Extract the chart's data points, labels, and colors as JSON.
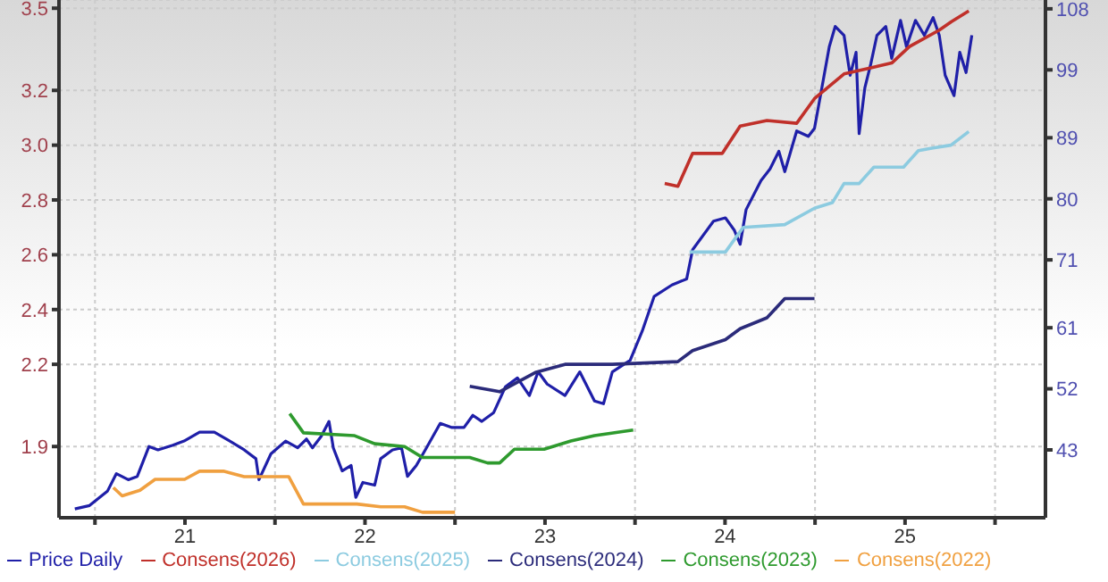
{
  "chart_data": {
    "type": "line",
    "xlim": [
      20.3,
      25.78
    ],
    "xticks": [
      {
        "value": 20.5,
        "label": null
      },
      21,
      {
        "value": 21.5,
        "label": null
      },
      22,
      {
        "value": 22.5,
        "label": null
      },
      23,
      {
        "value": 23.5,
        "label": null
      },
      24,
      {
        "value": 24.5,
        "label": null
      },
      25,
      {
        "value": 25.5,
        "label": null
      }
    ],
    "ylim": [
      1.64,
      3.53
    ],
    "yticks": [
      1.9,
      2.2,
      2.4,
      2.6,
      2.8,
      {
        "value": 3.0,
        "label": "3.0"
      },
      3.2,
      3.5
    ],
    "y2lim": [
      33,
      109.3
    ],
    "y2ticks": [
      43,
      52,
      61,
      71,
      80,
      89,
      99,
      108
    ],
    "grid": true,
    "legend": "bottom",
    "marker": "none",
    "line_style": "solid",
    "series": [
      {
        "name": "Price Daily",
        "color": "#1f1fa8",
        "axis": "y2",
        "x": [
          20.388,
          20.47,
          20.569,
          20.619,
          20.685,
          20.735,
          20.8,
          20.85,
          20.933,
          20.995,
          21.081,
          21.163,
          21.23,
          21.329,
          21.394,
          21.411,
          21.477,
          21.559,
          21.626,
          21.675,
          21.708,
          21.757,
          21.8,
          21.824,
          21.873,
          21.923,
          21.949,
          21.988,
          22.054,
          22.087,
          22.153,
          22.203,
          22.236,
          22.285,
          22.335,
          22.418,
          22.483,
          22.55,
          22.599,
          22.649,
          22.715,
          22.78,
          22.847,
          22.913,
          22.962,
          23.012,
          23.111,
          23.193,
          23.275,
          23.325,
          23.374,
          23.473,
          23.54,
          23.606,
          23.705,
          23.787,
          23.82,
          23.936,
          24.002,
          24.051,
          24.084,
          24.117,
          24.2,
          24.25,
          24.299,
          24.332,
          24.398,
          24.463,
          24.497,
          24.53,
          24.579,
          24.612,
          24.661,
          24.695,
          24.728,
          24.745,
          24.777,
          24.81,
          24.844,
          24.893,
          24.926,
          24.975,
          25.008,
          25.058,
          25.107,
          25.156,
          25.19,
          25.223,
          25.272,
          25.304,
          25.339,
          25.371
        ],
        "values": [
          34.3,
          34.8,
          36.9,
          39.5,
          38.6,
          39.1,
          43.5,
          43.0,
          43.7,
          44.3,
          45.6,
          45.6,
          44.6,
          43.0,
          41.7,
          38.6,
          42.4,
          44.3,
          43.3,
          44.6,
          43.3,
          45.0,
          47.2,
          43.3,
          39.9,
          40.7,
          36.0,
          38.2,
          37.8,
          41.7,
          43.0,
          43.3,
          39.1,
          40.7,
          43.0,
          46.9,
          46.3,
          46.3,
          48.1,
          47.2,
          48.5,
          52.3,
          53.6,
          51.0,
          54.5,
          52.7,
          51.0,
          54.5,
          50.2,
          49.8,
          54.5,
          56.2,
          60.5,
          65.6,
          67.3,
          68.2,
          72.5,
          76.7,
          77.2,
          75.4,
          73.3,
          78.4,
          82.7,
          84.4,
          87.0,
          84.0,
          90.0,
          89.2,
          90.4,
          95.2,
          102.4,
          105.4,
          104.1,
          98.2,
          101.6,
          89.6,
          96.4,
          99.9,
          104.1,
          105.4,
          100.7,
          106.3,
          102.4,
          106.3,
          104.1,
          106.7,
          104.1,
          98.2,
          95.2,
          101.6,
          98.6,
          104.1
        ]
      },
      {
        "name": "Consens(2026)",
        "color": "#c0302a",
        "x": [
          23.665,
          23.738,
          23.82,
          23.985,
          24.084,
          24.233,
          24.398,
          24.497,
          24.661,
          24.794,
          24.926,
          25.025,
          25.19,
          25.256,
          25.354
        ],
        "values": [
          2.86,
          2.85,
          2.97,
          2.97,
          3.07,
          3.09,
          3.08,
          3.17,
          3.26,
          3.28,
          3.3,
          3.36,
          3.42,
          3.45,
          3.49
        ]
      },
      {
        "name": "Consens(2025)",
        "color": "#8ccbe0",
        "x": [
          23.803,
          24.002,
          24.101,
          24.332,
          24.497,
          24.596,
          24.661,
          24.745,
          24.827,
          24.992,
          25.074,
          25.156,
          25.255,
          25.354
        ],
        "values": [
          2.61,
          2.61,
          2.7,
          2.71,
          2.77,
          2.79,
          2.86,
          2.86,
          2.92,
          2.92,
          2.98,
          2.99,
          3.0,
          3.05
        ]
      },
      {
        "name": "Consens(2024)",
        "color": "#2b2b7a",
        "x": [
          22.582,
          22.748,
          22.946,
          23.111,
          23.374,
          23.738,
          23.82,
          24.002,
          24.084,
          24.233,
          24.332,
          24.497
        ],
        "values": [
          2.12,
          2.1,
          2.17,
          2.2,
          2.2,
          2.21,
          2.25,
          2.29,
          2.33,
          2.37,
          2.44,
          2.44
        ]
      },
      {
        "name": "Consens(2023)",
        "color": "#2e9a2e",
        "x": [
          21.582,
          21.658,
          21.939,
          22.054,
          22.22,
          22.319,
          22.582,
          22.681,
          22.748,
          22.83,
          22.995,
          23.144,
          23.275,
          23.49
        ],
        "values": [
          2.02,
          1.95,
          1.94,
          1.91,
          1.9,
          1.86,
          1.86,
          1.84,
          1.84,
          1.89,
          1.89,
          1.92,
          1.94,
          1.96
        ]
      },
      {
        "name": "Consens(2022)",
        "color": "#f0a040",
        "x": [
          20.602,
          20.651,
          20.75,
          20.834,
          20.998,
          21.081,
          21.213,
          21.329,
          21.576,
          21.658,
          21.955,
          22.087,
          22.22,
          22.319,
          22.5
        ],
        "values": [
          1.75,
          1.72,
          1.74,
          1.78,
          1.78,
          1.81,
          1.81,
          1.79,
          1.79,
          1.69,
          1.69,
          1.68,
          1.68,
          1.66,
          1.66
        ]
      }
    ]
  }
}
